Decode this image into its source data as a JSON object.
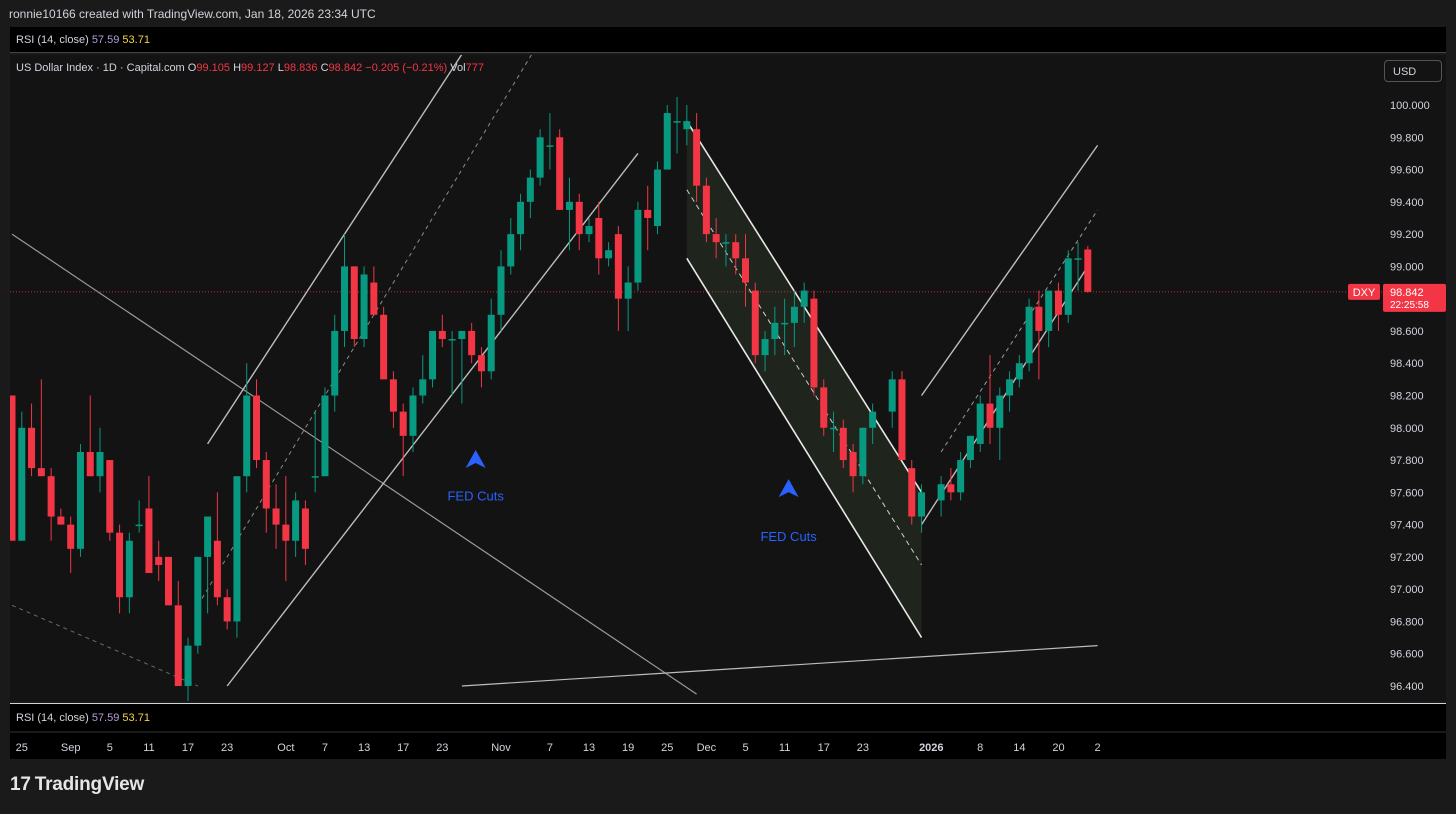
{
  "header": {
    "text": "ronnie10166 created with TradingView.com, Jan 18, 2026 23:34 UTC"
  },
  "indicator": {
    "name": "RSI (14, close)",
    "value1": "57.59",
    "value2": "53.71"
  },
  "legend": {
    "symbol": "US Dollar Index · 1D · Capital.com",
    "o_label": "O",
    "o": "99.105",
    "h_label": "H",
    "h": "99.127",
    "l_label": "L",
    "l": "98.836",
    "c_label": "C",
    "c": "98.842",
    "change": "−0.205 (−0.21%)",
    "vol_label": "Vol",
    "vol": "777"
  },
  "currency_button": "USD",
  "price_tag": {
    "symbol": "DXY",
    "price": "98.842",
    "countdown": "22:25:58"
  },
  "annotations": [
    "FED Cuts",
    "FED Cuts"
  ],
  "footer": {
    "brand": "TradingView",
    "logo_mark": "17"
  },
  "colors": {
    "up": "#089981",
    "down": "#f23645",
    "marker": "#2962ff",
    "background": "#131313"
  },
  "chart_data": {
    "type": "candlestick",
    "symbol": "DXY",
    "current_price": 98.842,
    "yticks": [
      "100.000",
      "99.800",
      "99.600",
      "99.400",
      "99.200",
      "99.000",
      "98.800",
      "98.600",
      "98.400",
      "98.200",
      "98.000",
      "97.800",
      "97.600",
      "97.400",
      "97.200",
      "97.000",
      "96.800",
      "96.600",
      "96.400"
    ],
    "ylim": [
      96.3,
      100.2
    ],
    "xticks": [
      {
        "label": "25",
        "date": "2025-08-25"
      },
      {
        "label": "Sep",
        "date": "2025-09-01"
      },
      {
        "label": "5",
        "date": "2025-09-05"
      },
      {
        "label": "11",
        "date": "2025-09-11"
      },
      {
        "label": "17",
        "date": "2025-09-17"
      },
      {
        "label": "23",
        "date": "2025-09-23"
      },
      {
        "label": "Oct",
        "date": "2025-10-01"
      },
      {
        "label": "7",
        "date": "2025-10-07"
      },
      {
        "label": "13",
        "date": "2025-10-13"
      },
      {
        "label": "17",
        "date": "2025-10-17"
      },
      {
        "label": "23",
        "date": "2025-10-23"
      },
      {
        "label": "Nov",
        "date": "2025-11-01"
      },
      {
        "label": "7",
        "date": "2025-11-07"
      },
      {
        "label": "13",
        "date": "2025-11-13"
      },
      {
        "label": "19",
        "date": "2025-11-19"
      },
      {
        "label": "25",
        "date": "2025-11-25"
      },
      {
        "label": "Dec",
        "date": "2025-12-01"
      },
      {
        "label": "5",
        "date": "2025-12-05"
      },
      {
        "label": "11",
        "date": "2025-12-11"
      },
      {
        "label": "17",
        "date": "2025-12-17"
      },
      {
        "label": "23",
        "date": "2025-12-23"
      },
      {
        "label": "2026",
        "date": "2026-01-01"
      },
      {
        "label": "8",
        "date": "2026-01-08"
      },
      {
        "label": "14",
        "date": "2026-01-14"
      },
      {
        "label": "20",
        "date": "2026-01-20"
      },
      {
        "label": "2",
        "date": "2026-01-26"
      }
    ],
    "candles": [
      {
        "date": "2025-08-22",
        "o": 98.2,
        "h": 98.2,
        "l": 97.3,
        "c": 97.3
      },
      {
        "date": "2025-08-25",
        "o": 97.3,
        "h": 98.1,
        "l": 97.3,
        "c": 98.0
      },
      {
        "date": "2025-08-26",
        "o": 98.0,
        "h": 98.15,
        "l": 97.7,
        "c": 97.75
      },
      {
        "date": "2025-08-27",
        "o": 97.75,
        "h": 98.3,
        "l": 97.7,
        "c": 97.7
      },
      {
        "date": "2025-08-28",
        "o": 97.7,
        "h": 97.75,
        "l": 97.3,
        "c": 97.45
      },
      {
        "date": "2025-08-29",
        "o": 97.45,
        "h": 97.5,
        "l": 97.4,
        "c": 97.4
      },
      {
        "date": "2025-09-01",
        "o": 97.4,
        "h": 97.45,
        "l": 97.1,
        "c": 97.25
      },
      {
        "date": "2025-09-02",
        "o": 97.25,
        "h": 97.9,
        "l": 97.2,
        "c": 97.85
      },
      {
        "date": "2025-09-03",
        "o": 97.85,
        "h": 98.2,
        "l": 97.7,
        "c": 97.7
      },
      {
        "date": "2025-09-04",
        "o": 97.7,
        "h": 98.0,
        "l": 97.6,
        "c": 97.85
      },
      {
        "date": "2025-09-05",
        "o": 97.8,
        "h": 97.8,
        "l": 97.3,
        "c": 97.35
      },
      {
        "date": "2025-09-08",
        "o": 97.35,
        "h": 97.4,
        "l": 96.85,
        "c": 96.95
      },
      {
        "date": "2025-09-09",
        "o": 96.95,
        "h": 97.35,
        "l": 96.85,
        "c": 97.3
      },
      {
        "date": "2025-09-10",
        "o": 97.4,
        "h": 97.55,
        "l": 97.35,
        "c": 97.4
      },
      {
        "date": "2025-09-11",
        "o": 97.5,
        "h": 97.7,
        "l": 97.1,
        "c": 97.1
      },
      {
        "date": "2025-09-12",
        "o": 97.2,
        "h": 97.3,
        "l": 97.05,
        "c": 97.15
      },
      {
        "date": "2025-09-15",
        "o": 97.2,
        "h": 97.2,
        "l": 96.9,
        "c": 96.9
      },
      {
        "date": "2025-09-16",
        "o": 96.9,
        "h": 97.05,
        "l": 96.4,
        "c": 96.4
      },
      {
        "date": "2025-09-17",
        "o": 96.4,
        "h": 96.7,
        "l": 96.3,
        "c": 96.65
      },
      {
        "date": "2025-09-18",
        "o": 96.65,
        "h": 97.2,
        "l": 96.6,
        "c": 97.2
      },
      {
        "date": "2025-09-19",
        "o": 97.2,
        "h": 97.45,
        "l": 96.85,
        "c": 97.45
      },
      {
        "date": "2025-09-22",
        "o": 97.3,
        "h": 97.6,
        "l": 96.9,
        "c": 96.95
      },
      {
        "date": "2025-09-23",
        "o": 96.95,
        "h": 97.0,
        "l": 96.75,
        "c": 96.8
      },
      {
        "date": "2025-09-24",
        "o": 96.8,
        "h": 97.7,
        "l": 96.7,
        "c": 97.7
      },
      {
        "date": "2025-09-25",
        "o": 97.7,
        "h": 98.4,
        "l": 97.6,
        "c": 98.2
      },
      {
        "date": "2025-09-26",
        "o": 98.2,
        "h": 98.3,
        "l": 97.75,
        "c": 97.8
      },
      {
        "date": "2025-09-29",
        "o": 97.8,
        "h": 97.85,
        "l": 97.35,
        "c": 97.5
      },
      {
        "date": "2025-09-30",
        "o": 97.5,
        "h": 97.65,
        "l": 97.25,
        "c": 97.4
      },
      {
        "date": "2025-10-01",
        "o": 97.4,
        "h": 97.7,
        "l": 97.05,
        "c": 97.3
      },
      {
        "date": "2025-10-02",
        "o": 97.3,
        "h": 97.6,
        "l": 97.2,
        "c": 97.55
      },
      {
        "date": "2025-10-03",
        "o": 97.5,
        "h": 97.55,
        "l": 97.15,
        "c": 97.25
      },
      {
        "date": "2025-10-06",
        "o": 97.7,
        "h": 98.1,
        "l": 97.6,
        "c": 97.7
      },
      {
        "date": "2025-10-07",
        "o": 97.7,
        "h": 98.25,
        "l": 97.7,
        "c": 98.2
      },
      {
        "date": "2025-10-08",
        "o": 98.2,
        "h": 98.7,
        "l": 98.1,
        "c": 98.6
      },
      {
        "date": "2025-10-09",
        "o": 98.6,
        "h": 99.2,
        "l": 98.5,
        "c": 99.0
      },
      {
        "date": "2025-10-10",
        "o": 99.0,
        "h": 99.0,
        "l": 98.5,
        "c": 98.55
      },
      {
        "date": "2025-10-13",
        "o": 98.55,
        "h": 99.0,
        "l": 98.5,
        "c": 98.95
      },
      {
        "date": "2025-10-14",
        "o": 98.9,
        "h": 99.0,
        "l": 98.7,
        "c": 98.7
      },
      {
        "date": "2025-10-15",
        "o": 98.7,
        "h": 98.75,
        "l": 98.3,
        "c": 98.3
      },
      {
        "date": "2025-10-16",
        "o": 98.3,
        "h": 98.35,
        "l": 98.0,
        "c": 98.1
      },
      {
        "date": "2025-10-17",
        "o": 98.1,
        "h": 98.15,
        "l": 97.7,
        "c": 97.95
      },
      {
        "date": "2025-10-20",
        "o": 97.95,
        "h": 98.25,
        "l": 97.85,
        "c": 98.2
      },
      {
        "date": "2025-10-21",
        "o": 98.2,
        "h": 98.45,
        "l": 98.15,
        "c": 98.3
      },
      {
        "date": "2025-10-22",
        "o": 98.3,
        "h": 98.6,
        "l": 98.25,
        "c": 98.6
      },
      {
        "date": "2025-10-23",
        "o": 98.6,
        "h": 98.7,
        "l": 98.5,
        "c": 98.55
      },
      {
        "date": "2025-10-24",
        "o": 98.55,
        "h": 98.6,
        "l": 98.2,
        "c": 98.55
      },
      {
        "date": "2025-10-27",
        "o": 98.55,
        "h": 98.6,
        "l": 98.15,
        "c": 98.6
      },
      {
        "date": "2025-10-28",
        "o": 98.6,
        "h": 98.65,
        "l": 98.4,
        "c": 98.45
      },
      {
        "date": "2025-10-29",
        "o": 98.45,
        "h": 98.5,
        "l": 98.25,
        "c": 98.35
      },
      {
        "date": "2025-10-30",
        "o": 98.35,
        "h": 98.8,
        "l": 98.3,
        "c": 98.7
      },
      {
        "date": "2025-10-31",
        "o": 98.7,
        "h": 99.1,
        "l": 98.6,
        "c": 99.0
      },
      {
        "date": "2025-11-03",
        "o": 99.0,
        "h": 99.3,
        "l": 98.95,
        "c": 99.2
      },
      {
        "date": "2025-11-04",
        "o": 99.2,
        "h": 99.45,
        "l": 99.1,
        "c": 99.4
      },
      {
        "date": "2025-11-05",
        "o": 99.4,
        "h": 99.6,
        "l": 99.3,
        "c": 99.55
      },
      {
        "date": "2025-11-06",
        "o": 99.55,
        "h": 99.85,
        "l": 99.5,
        "c": 99.8
      },
      {
        "date": "2025-11-07",
        "o": 99.75,
        "h": 99.95,
        "l": 99.6,
        "c": 99.75
      },
      {
        "date": "2025-11-10",
        "o": 99.8,
        "h": 99.85,
        "l": 99.35,
        "c": 99.35
      },
      {
        "date": "2025-11-11",
        "o": 99.35,
        "h": 99.55,
        "l": 99.1,
        "c": 99.4
      },
      {
        "date": "2025-11-12",
        "o": 99.4,
        "h": 99.45,
        "l": 99.1,
        "c": 99.2
      },
      {
        "date": "2025-11-13",
        "o": 99.2,
        "h": 99.3,
        "l": 99.15,
        "c": 99.25
      },
      {
        "date": "2025-11-14",
        "o": 99.3,
        "h": 99.4,
        "l": 98.95,
        "c": 99.05
      },
      {
        "date": "2025-11-17",
        "o": 99.05,
        "h": 99.15,
        "l": 99.0,
        "c": 99.1
      },
      {
        "date": "2025-11-18",
        "o": 99.2,
        "h": 99.25,
        "l": 98.6,
        "c": 98.8
      },
      {
        "date": "2025-11-19",
        "o": 98.8,
        "h": 99.0,
        "l": 98.6,
        "c": 98.9
      },
      {
        "date": "2025-11-20",
        "o": 98.9,
        "h": 99.4,
        "l": 98.85,
        "c": 99.35
      },
      {
        "date": "2025-11-21",
        "o": 99.35,
        "h": 99.5,
        "l": 99.1,
        "c": 99.3
      },
      {
        "date": "2025-11-24",
        "o": 99.25,
        "h": 99.65,
        "l": 99.2,
        "c": 99.6
      },
      {
        "date": "2025-11-25",
        "o": 99.6,
        "h": 100.0,
        "l": 99.6,
        "c": 99.95
      },
      {
        "date": "2025-11-26",
        "o": 99.9,
        "h": 100.05,
        "l": 99.7,
        "c": 99.9
      },
      {
        "date": "2025-11-27",
        "o": 99.85,
        "h": 100.0,
        "l": 99.75,
        "c": 99.9
      },
      {
        "date": "2025-11-28",
        "o": 99.85,
        "h": 99.95,
        "l": 99.4,
        "c": 99.5
      },
      {
        "date": "2025-12-01",
        "o": 99.5,
        "h": 99.55,
        "l": 99.15,
        "c": 99.2
      },
      {
        "date": "2025-12-02",
        "o": 99.2,
        "h": 99.3,
        "l": 99.05,
        "c": 99.15
      },
      {
        "date": "2025-12-03",
        "o": 99.15,
        "h": 99.2,
        "l": 99.0,
        "c": 99.15
      },
      {
        "date": "2025-12-04",
        "o": 99.15,
        "h": 99.2,
        "l": 98.95,
        "c": 99.05
      },
      {
        "date": "2025-12-05",
        "o": 99.05,
        "h": 99.2,
        "l": 98.75,
        "c": 98.9
      },
      {
        "date": "2025-12-08",
        "o": 98.85,
        "h": 98.9,
        "l": 98.4,
        "c": 98.45
      },
      {
        "date": "2025-12-09",
        "o": 98.45,
        "h": 98.6,
        "l": 98.35,
        "c": 98.55
      },
      {
        "date": "2025-12-10",
        "o": 98.55,
        "h": 98.75,
        "l": 98.45,
        "c": 98.65
      },
      {
        "date": "2025-12-11",
        "o": 98.65,
        "h": 98.8,
        "l": 98.45,
        "c": 98.65
      },
      {
        "date": "2025-12-12",
        "o": 98.65,
        "h": 98.85,
        "l": 98.5,
        "c": 98.75
      },
      {
        "date": "2025-12-15",
        "o": 98.75,
        "h": 98.9,
        "l": 98.65,
        "c": 98.85
      },
      {
        "date": "2025-12-16",
        "o": 98.8,
        "h": 98.85,
        "l": 98.2,
        "c": 98.25
      },
      {
        "date": "2025-12-17",
        "o": 98.25,
        "h": 98.3,
        "l": 97.95,
        "c": 98.0
      },
      {
        "date": "2025-12-18",
        "o": 98.0,
        "h": 98.1,
        "l": 97.85,
        "c": 98.0
      },
      {
        "date": "2025-12-19",
        "o": 98.0,
        "h": 98.05,
        "l": 97.75,
        "c": 97.8
      },
      {
        "date": "2025-12-22",
        "o": 97.85,
        "h": 97.9,
        "l": 97.6,
        "c": 97.7
      },
      {
        "date": "2025-12-23",
        "o": 97.7,
        "h": 98.0,
        "l": 97.65,
        "c": 98.0
      },
      {
        "date": "2025-12-24",
        "o": 98.0,
        "h": 98.15,
        "l": 97.9,
        "c": 98.1
      },
      {
        "date": "2025-12-26",
        "o": 98.1,
        "h": 98.35,
        "l": 98.0,
        "c": 98.3
      },
      {
        "date": "2025-12-29",
        "o": 98.3,
        "h": 98.35,
        "l": 97.8,
        "c": 97.8
      },
      {
        "date": "2025-12-30",
        "o": 97.75,
        "h": 97.8,
        "l": 97.4,
        "c": 97.45
      },
      {
        "date": "2025-12-31",
        "o": 97.45,
        "h": 97.65,
        "l": 97.35,
        "c": 97.6
      },
      {
        "date": "2026-01-02",
        "o": 97.55,
        "h": 97.7,
        "l": 97.45,
        "c": 97.65
      },
      {
        "date": "2026-01-05",
        "o": 97.65,
        "h": 97.75,
        "l": 97.55,
        "c": 97.6
      },
      {
        "date": "2026-01-06",
        "o": 97.6,
        "h": 97.85,
        "l": 97.55,
        "c": 97.8
      },
      {
        "date": "2026-01-07",
        "o": 97.8,
        "h": 97.95,
        "l": 97.75,
        "c": 97.95
      },
      {
        "date": "2026-01-08",
        "o": 97.9,
        "h": 98.2,
        "l": 97.85,
        "c": 98.15
      },
      {
        "date": "2026-01-09",
        "o": 98.15,
        "h": 98.45,
        "l": 97.9,
        "c": 98.0
      },
      {
        "date": "2026-01-12",
        "o": 98.0,
        "h": 98.25,
        "l": 97.8,
        "c": 98.2
      },
      {
        "date": "2026-01-13",
        "o": 98.2,
        "h": 98.35,
        "l": 98.1,
        "c": 98.3
      },
      {
        "date": "2026-01-14",
        "o": 98.3,
        "h": 98.45,
        "l": 98.25,
        "c": 98.4
      },
      {
        "date": "2026-01-15",
        "o": 98.4,
        "h": 98.8,
        "l": 98.35,
        "c": 98.75
      },
      {
        "date": "2026-01-16",
        "o": 98.75,
        "h": 98.85,
        "l": 98.3,
        "c": 98.6
      },
      {
        "date": "2026-01-19",
        "o": 98.6,
        "h": 98.85,
        "l": 98.5,
        "c": 98.85
      },
      {
        "date": "2026-01-20",
        "o": 98.85,
        "h": 98.9,
        "l": 98.6,
        "c": 98.7
      },
      {
        "date": "2026-01-21",
        "o": 98.7,
        "h": 99.1,
        "l": 98.65,
        "c": 99.05
      },
      {
        "date": "2026-01-22",
        "o": 99.05,
        "h": 99.15,
        "l": 98.85,
        "c": 99.05
      },
      {
        "date": "2026-01-23",
        "o": 99.105,
        "h": 99.127,
        "l": 98.836,
        "c": 98.842
      }
    ]
  }
}
